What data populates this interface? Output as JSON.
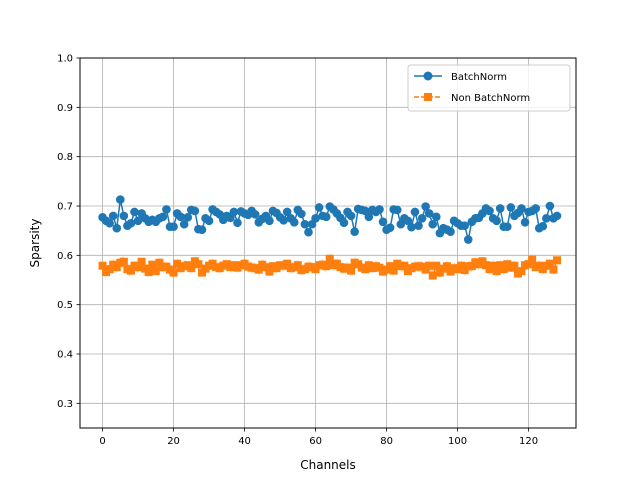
{
  "chart_data": {
    "type": "line",
    "xlabel": "Channels",
    "ylabel": "Sparsity",
    "xlim": [
      -6.35,
      133.35
    ],
    "ylim": [
      0.25,
      1.0
    ],
    "xticks": [
      0,
      20,
      40,
      60,
      80,
      100,
      120
    ],
    "xtick_labels": [
      "0",
      "20",
      "40",
      "60",
      "80",
      "100",
      "120"
    ],
    "yticks": [
      0.3,
      0.4,
      0.5,
      0.6,
      0.7,
      0.8,
      0.9,
      1.0
    ],
    "ytick_labels": [
      "0.3",
      "0.4",
      "0.5",
      "0.6",
      "0.7",
      "0.8",
      "0.9",
      "1.0"
    ],
    "grid": true,
    "legend_position": "top-right",
    "series": [
      {
        "name": "BatchNorm",
        "color": "#1f77b4",
        "marker": "circle",
        "linestyle": "solid",
        "band_halfwidth": 0.0,
        "x_start": 0,
        "values": [
          0.677,
          0.67,
          0.665,
          0.68,
          0.655,
          0.713,
          0.68,
          0.66,
          0.665,
          0.688,
          0.67,
          0.685,
          0.675,
          0.668,
          0.672,
          0.668,
          0.675,
          0.678,
          0.693,
          0.658,
          0.658,
          0.685,
          0.678,
          0.663,
          0.677,
          0.692,
          0.69,
          0.653,
          0.652,
          0.675,
          0.67,
          0.693,
          0.688,
          0.683,
          0.672,
          0.68,
          0.676,
          0.688,
          0.666,
          0.689,
          0.685,
          0.682,
          0.69,
          0.683,
          0.667,
          0.674,
          0.68,
          0.67,
          0.69,
          0.686,
          0.677,
          0.671,
          0.688,
          0.675,
          0.667,
          0.692,
          0.684,
          0.663,
          0.647,
          0.663,
          0.675,
          0.697,
          0.68,
          0.678,
          0.699,
          0.693,
          0.685,
          0.676,
          0.666,
          0.688,
          0.68,
          0.648,
          0.694,
          0.692,
          0.69,
          0.678,
          0.692,
          0.688,
          0.693,
          0.668,
          0.652,
          0.656,
          0.693,
          0.692,
          0.663,
          0.675,
          0.67,
          0.657,
          0.688,
          0.66,
          0.675,
          0.699,
          0.685,
          0.663,
          0.678,
          0.645,
          0.655,
          0.652,
          0.648,
          0.67,
          0.665,
          0.66,
          0.66,
          0.632,
          0.668,
          0.675,
          0.676,
          0.685,
          0.695,
          0.69,
          0.675,
          0.67,
          0.695,
          0.658,
          0.658,
          0.697,
          0.68,
          0.686,
          0.695,
          0.667,
          0.688,
          0.69,
          0.695,
          0.655,
          0.659,
          0.675,
          0.7,
          0.675,
          0.68
        ]
      },
      {
        "name": "Non BatchNorm",
        "color": "#ff7f0e",
        "marker": "square",
        "linestyle": "dashed",
        "band_halfwidth": 0.012,
        "x_start": 0,
        "values": [
          0.579,
          0.566,
          0.572,
          0.581,
          0.576,
          0.585,
          0.587,
          0.572,
          0.569,
          0.579,
          0.576,
          0.587,
          0.573,
          0.566,
          0.581,
          0.568,
          0.585,
          0.576,
          0.577,
          0.571,
          0.565,
          0.583,
          0.574,
          0.578,
          0.58,
          0.574,
          0.588,
          0.582,
          0.565,
          0.573,
          0.579,
          0.583,
          0.576,
          0.574,
          0.579,
          0.582,
          0.576,
          0.58,
          0.575,
          0.58,
          0.583,
          0.577,
          0.575,
          0.574,
          0.571,
          0.581,
          0.576,
          0.567,
          0.578,
          0.574,
          0.58,
          0.579,
          0.583,
          0.574,
          0.576,
          0.58,
          0.57,
          0.572,
          0.577,
          0.576,
          0.572,
          0.58,
          0.581,
          0.578,
          0.593,
          0.58,
          0.583,
          0.576,
          0.573,
          0.575,
          0.569,
          0.585,
          0.582,
          0.575,
          0.572,
          0.58,
          0.574,
          0.578,
          0.575,
          0.567,
          0.571,
          0.578,
          0.569,
          0.583,
          0.578,
          0.579,
          0.568,
          0.574,
          0.577,
          0.578,
          0.577,
          0.571,
          0.579,
          0.559,
          0.579,
          0.565,
          0.573,
          0.578,
          0.567,
          0.574,
          0.572,
          0.579,
          0.57,
          0.578,
          0.578,
          0.586,
          0.582,
          0.588,
          0.58,
          0.572,
          0.579,
          0.568,
          0.58,
          0.572,
          0.582,
          0.575,
          0.579,
          0.563,
          0.568,
          0.58,
          0.582,
          0.591,
          0.576,
          0.579,
          0.572,
          0.579,
          0.583,
          0.571,
          0.59
        ]
      }
    ]
  }
}
